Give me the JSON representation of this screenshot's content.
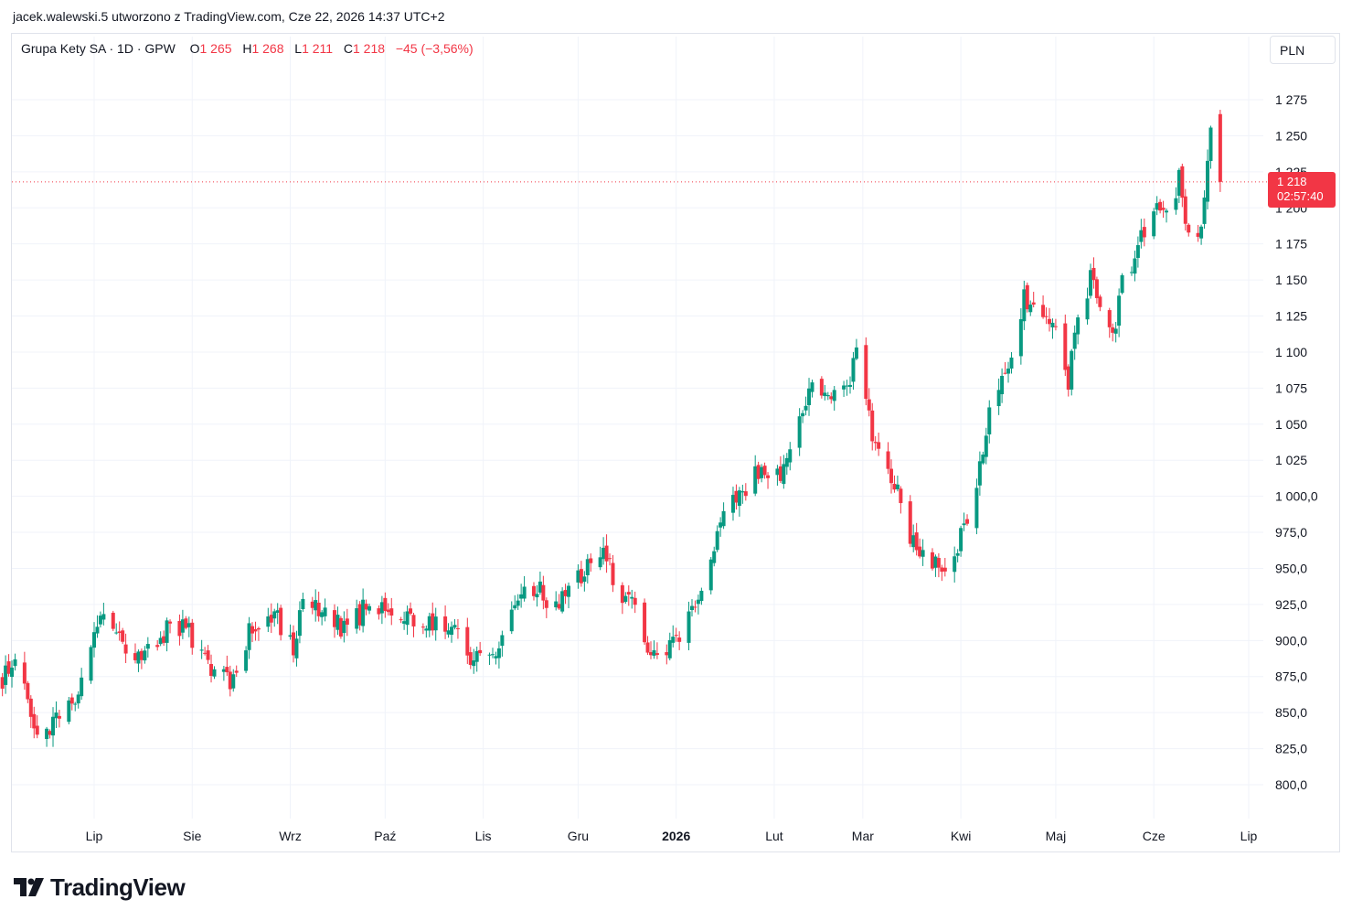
{
  "header": {
    "attribution": "jacek.walewski.5 utworzono z TradingView.com, Cze 22, 2026 14:37 UTC+2"
  },
  "legend": {
    "symbol": "Grupa Kety SA · 1D · GPW",
    "open_label": "O",
    "open": "1 265",
    "high_label": "H",
    "high": "1 268",
    "low_label": "L",
    "low": "1 211",
    "close_label": "C",
    "close": "1 218",
    "change": "−45 (−3,56%)"
  },
  "currency": "PLN",
  "last_price": {
    "price": "1 218",
    "countdown": "02:57:40"
  },
  "brand": {
    "name": "TradingView"
  },
  "colors": {
    "up": "#089981",
    "down": "#f23645",
    "grid": "#f0f3fa",
    "axis_text": "#131722"
  },
  "chart_data": {
    "type": "candlestick",
    "title": "Grupa Kety SA · 1D · GPW",
    "y_axis": {
      "range": [
        785,
        1290
      ],
      "ticks": [
        {
          "value": 1275,
          "label": "1 275"
        },
        {
          "value": 1250,
          "label": "1 250"
        },
        {
          "value": 1225,
          "label": "1 225"
        },
        {
          "value": 1200,
          "label": "1 200"
        },
        {
          "value": 1175,
          "label": "1 175"
        },
        {
          "value": 1150,
          "label": "1 150"
        },
        {
          "value": 1125,
          "label": "1 125"
        },
        {
          "value": 1100,
          "label": "1 100"
        },
        {
          "value": 1075,
          "label": "1 075"
        },
        {
          "value": 1050,
          "label": "1 050"
        },
        {
          "value": 1025,
          "label": "1 025"
        },
        {
          "value": 1000,
          "label": "1 000,0"
        },
        {
          "value": 975,
          "label": "975,0"
        },
        {
          "value": 950,
          "label": "950,0"
        },
        {
          "value": 925,
          "label": "925,0"
        },
        {
          "value": 900,
          "label": "900,0"
        },
        {
          "value": 875,
          "label": "875,0"
        },
        {
          "value": 850,
          "label": "850,0"
        },
        {
          "value": 825,
          "label": "825,0"
        },
        {
          "value": 800,
          "label": "800,0"
        }
      ]
    },
    "x_axis": {
      "ticks": [
        {
          "date": "2025-07-01",
          "label": "Lip",
          "bold": false
        },
        {
          "date": "2025-08-01",
          "label": "Sie",
          "bold": false
        },
        {
          "date": "2025-09-01",
          "label": "Wrz",
          "bold": false
        },
        {
          "date": "2025-10-01",
          "label": "Paź",
          "bold": false
        },
        {
          "date": "2025-11-01",
          "label": "Lis",
          "bold": false
        },
        {
          "date": "2025-12-01",
          "label": "Gru",
          "bold": false
        },
        {
          "date": "2026-01-01",
          "label": "2026",
          "bold": true
        },
        {
          "date": "2026-02-01",
          "label": "Lut",
          "bold": false
        },
        {
          "date": "2026-03-01",
          "label": "Mar",
          "bold": false
        },
        {
          "date": "2026-04-01",
          "label": "Kwi",
          "bold": false
        },
        {
          "date": "2026-05-01",
          "label": "Maj",
          "bold": false
        },
        {
          "date": "2026-06-01",
          "label": "Cze",
          "bold": false
        },
        {
          "date": "2026-07-01",
          "label": "Lip",
          "bold": false
        }
      ]
    },
    "last_close": 1218,
    "grid": true,
    "anchors": [
      [
        "2025-06-02",
        870
      ],
      [
        "2025-06-06",
        890
      ],
      [
        "2025-06-13",
        830
      ],
      [
        "2025-06-20",
        845
      ],
      [
        "2025-06-27",
        870
      ],
      [
        "2025-07-03",
        915
      ],
      [
        "2025-07-11",
        895
      ],
      [
        "2025-07-18",
        890
      ],
      [
        "2025-07-25",
        912
      ],
      [
        "2025-07-31",
        905
      ],
      [
        "2025-08-08",
        875
      ],
      [
        "2025-08-14",
        870
      ],
      [
        "2025-08-20",
        912
      ],
      [
        "2025-08-27",
        918
      ],
      [
        "2025-09-02",
        892
      ],
      [
        "2025-09-05",
        930
      ],
      [
        "2025-09-11",
        922
      ],
      [
        "2025-09-19",
        905
      ],
      [
        "2025-09-25",
        925
      ],
      [
        "2025-10-01",
        920
      ],
      [
        "2025-10-09",
        915
      ],
      [
        "2025-10-17",
        912
      ],
      [
        "2025-10-23",
        910
      ],
      [
        "2025-10-28",
        888
      ],
      [
        "2025-11-04",
        890
      ],
      [
        "2025-11-11",
        925
      ],
      [
        "2025-11-18",
        940
      ],
      [
        "2025-11-24",
        920
      ],
      [
        "2025-11-28",
        935
      ],
      [
        "2025-12-03",
        948
      ],
      [
        "2025-12-09",
        958
      ],
      [
        "2025-12-16",
        930
      ],
      [
        "2025-12-19",
        920
      ],
      [
        "2025-12-23",
        890
      ],
      [
        "2025-12-30",
        898
      ],
      [
        "2026-01-07",
        922
      ],
      [
        "2026-01-12",
        960
      ],
      [
        "2026-01-16",
        985
      ],
      [
        "2026-01-20",
        1000
      ],
      [
        "2026-01-26",
        1015
      ],
      [
        "2026-02-02",
        1012
      ],
      [
        "2026-02-06",
        1035
      ],
      [
        "2026-02-12",
        1075
      ],
      [
        "2026-02-17",
        1065
      ],
      [
        "2026-02-23",
        1070
      ],
      [
        "2026-02-27",
        1100
      ],
      [
        "2026-03-04",
        1040
      ],
      [
        "2026-03-10",
        1015
      ],
      [
        "2026-03-16",
        975
      ],
      [
        "2026-03-20",
        960
      ],
      [
        "2026-03-25",
        950
      ],
      [
        "2026-03-31",
        965
      ],
      [
        "2026-04-06",
        1005
      ],
      [
        "2026-04-10",
        1065
      ],
      [
        "2026-04-16",
        1090
      ],
      [
        "2026-04-21",
        1140
      ],
      [
        "2026-04-27",
        1120
      ],
      [
        "2026-05-01",
        1110
      ],
      [
        "2026-05-05",
        1080
      ],
      [
        "2026-05-08",
        1130
      ],
      [
        "2026-05-12",
        1150
      ],
      [
        "2026-05-15",
        1128
      ],
      [
        "2026-05-19",
        1110
      ],
      [
        "2026-05-22",
        1150
      ],
      [
        "2026-05-26",
        1160
      ],
      [
        "2026-05-29",
        1185
      ],
      [
        "2026-06-02",
        1210
      ],
      [
        "2026-06-05",
        1195
      ],
      [
        "2026-06-09",
        1220
      ],
      [
        "2026-06-12",
        1185
      ],
      [
        "2026-06-15",
        1175
      ],
      [
        "2026-06-17",
        1205
      ],
      [
        "2026-06-19",
        1263
      ],
      [
        "2026-06-22",
        1218
      ]
    ],
    "last_candle": {
      "date": "2026-06-22",
      "open": 1265,
      "high": 1268,
      "low": 1211,
      "close": 1218
    }
  }
}
